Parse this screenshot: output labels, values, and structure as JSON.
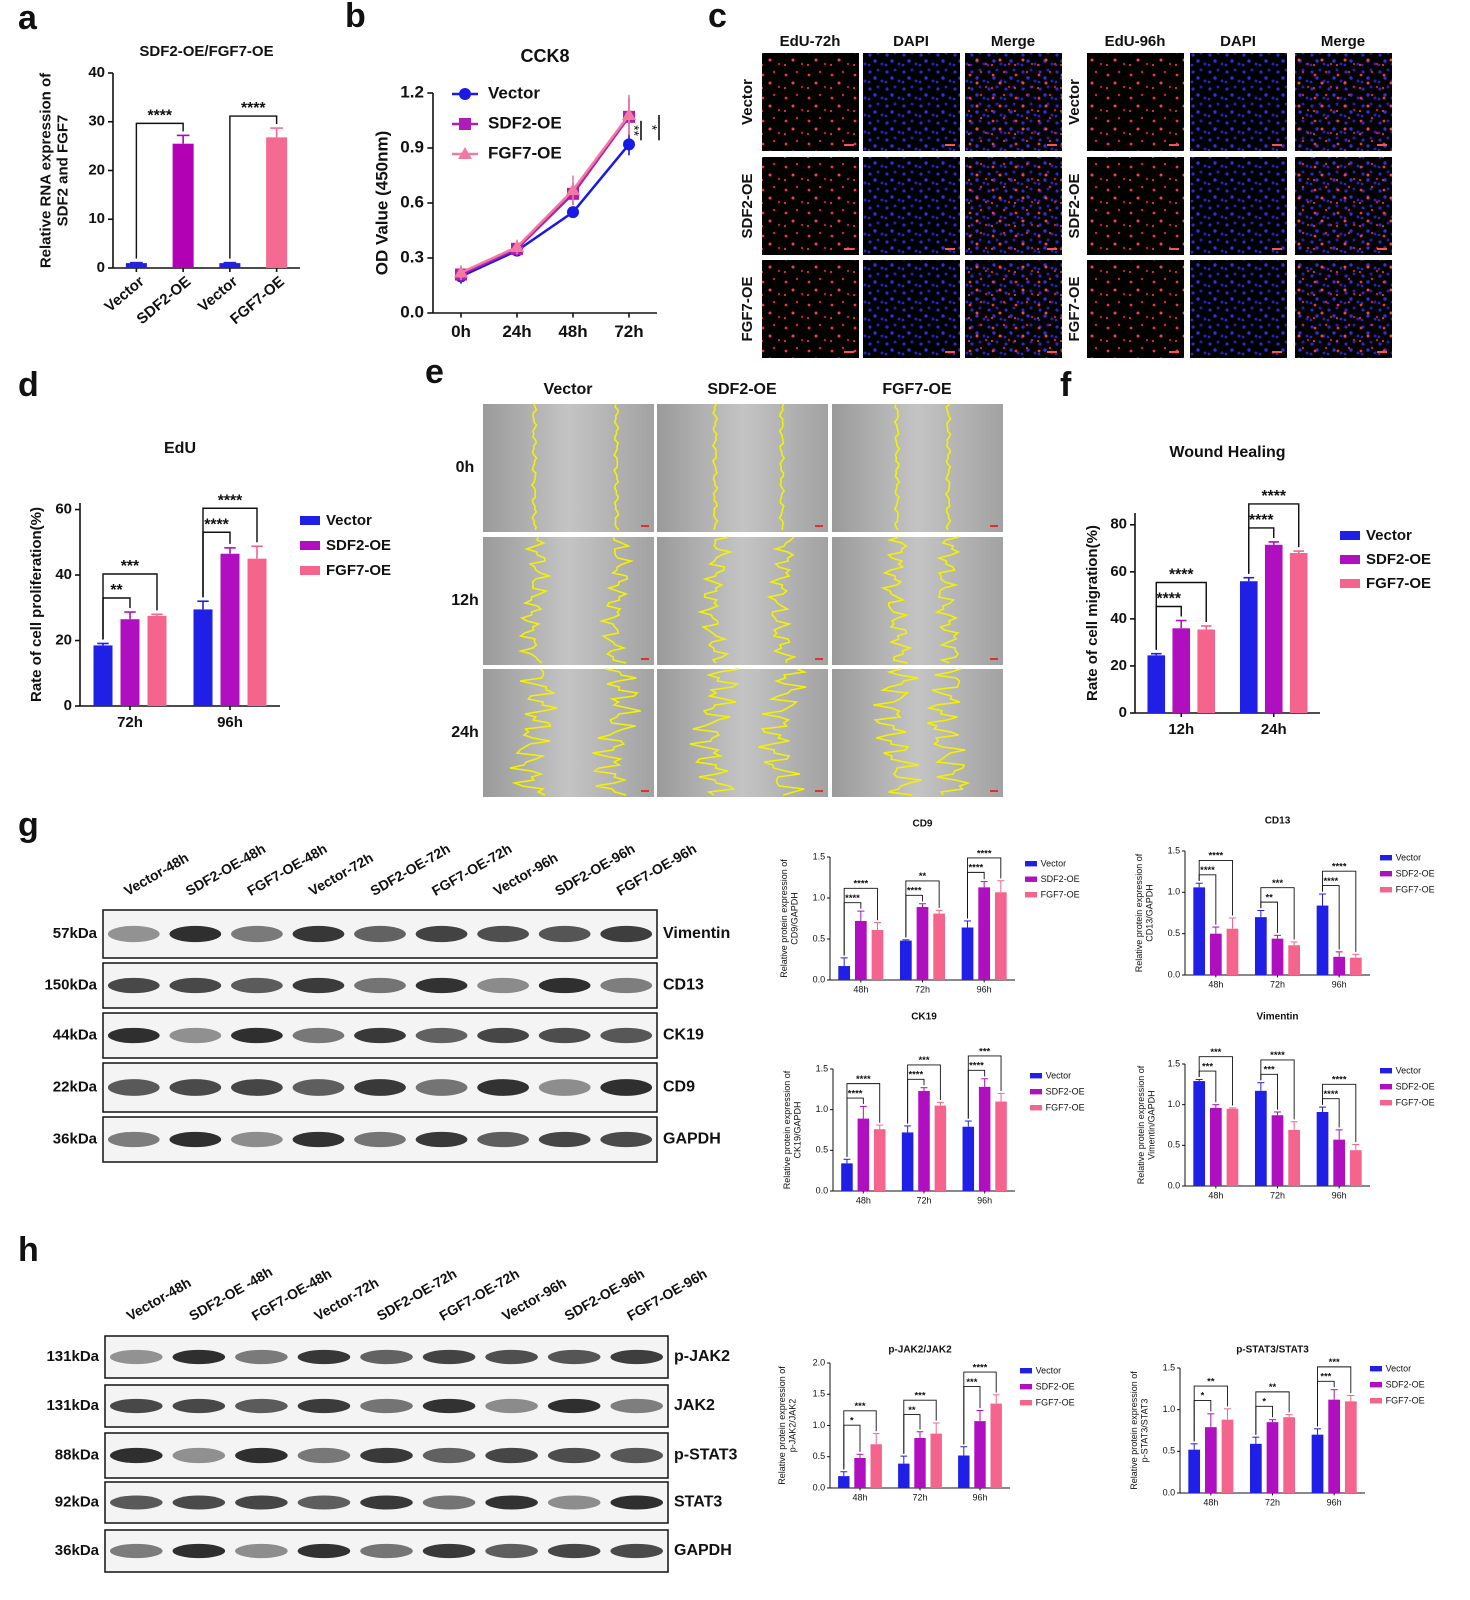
{
  "panels": [
    "a",
    "b",
    "c",
    "d",
    "e",
    "f",
    "g",
    "h"
  ],
  "chart_data": [
    {
      "type": "bar",
      "title": "SDF2-OE/FGF7-OE",
      "ylabel": [
        "Relative RNA expression of",
        "SDF2 and FGF7"
      ],
      "categories": [
        "Vector",
        "SDF2-OE",
        "Vector",
        "FGF7-OE"
      ],
      "values": [
        1,
        25.5,
        1,
        26.8
      ],
      "errors": [
        0.1,
        1.7,
        0.1,
        1.9
      ],
      "colors": [
        "#2020e0",
        "#b400b4",
        "#2020e0",
        "#f56a93"
      ],
      "ylim": [
        0,
        40
      ],
      "yticks": [
        0,
        10,
        20,
        30,
        40
      ],
      "significance": [
        "****",
        "****"
      ]
    },
    {
      "type": "line",
      "title": "CCK8",
      "ylabel": [
        "OD Value (450nm)"
      ],
      "categories": [
        "0h",
        "24h",
        "48h",
        "72h"
      ],
      "series": [
        {
          "name": "Vector",
          "color": "#1a1ae6",
          "marker": "circle",
          "values": [
            0.2,
            0.34,
            0.55,
            0.92
          ],
          "errors": [
            0.04,
            0.03,
            0.03,
            0.06
          ]
        },
        {
          "name": "SDF2-OE",
          "color": "#b01cb8",
          "marker": "square",
          "values": [
            0.21,
            0.35,
            0.65,
            1.07
          ],
          "errors": [
            0.04,
            0.04,
            0.06,
            0.1
          ]
        },
        {
          "name": "FGF7-OE",
          "color": "#f07aa0",
          "marker": "triangle",
          "values": [
            0.22,
            0.36,
            0.67,
            1.08
          ],
          "errors": [
            0.04,
            0.04,
            0.08,
            0.11
          ]
        }
      ],
      "ylim": [
        0,
        1.2
      ],
      "yticks": [
        {
          "value": 0,
          "label": "0.0"
        },
        0.3,
        0.6,
        0.9,
        1.2
      ],
      "legend": "upper left",
      "significance": [
        "**",
        "*"
      ]
    },
    {
      "type": "bar",
      "title": "EdU",
      "ylabel": [
        "Rate of cell proliferation(%)"
      ],
      "categories": [
        "72h",
        "96h"
      ],
      "series": [
        {
          "name": "Vector",
          "color": "#1f1fe6",
          "values": [
            18.5,
            29.5
          ],
          "errors": [
            0.6,
            2.5
          ]
        },
        {
          "name": "SDF2-OE",
          "color": "#b00fbf",
          "values": [
            26.5,
            46.5
          ],
          "errors": [
            2.2,
            1.8
          ]
        },
        {
          "name": "FGF7-OE",
          "color": "#f5648c",
          "values": [
            27.5,
            45
          ],
          "errors": [
            0.5,
            3.8
          ]
        }
      ],
      "ylim": [
        0,
        62
      ],
      "yticks": [
        0,
        20,
        40,
        60
      ],
      "legend": "right",
      "significance": [
        [
          "**",
          "***"
        ],
        [
          "****",
          "****"
        ]
      ]
    },
    {
      "type": "bar",
      "title": "Wound Healing",
      "ylabel": [
        "Rate of cell migration(%)"
      ],
      "categories": [
        "12h",
        "24h"
      ],
      "series": [
        {
          "name": "Vector",
          "color": "#1f1fe6",
          "values": [
            24.5,
            56
          ],
          "errors": [
            0.7,
            1.5
          ]
        },
        {
          "name": "SDF2-OE",
          "color": "#b00fbf",
          "values": [
            36,
            71.5
          ],
          "errors": [
            3.3,
            1.2
          ]
        },
        {
          "name": "FGF7-OE",
          "color": "#f5648c",
          "values": [
            35.5,
            68
          ],
          "errors": [
            1.5,
            0.8
          ]
        }
      ],
      "ylim": [
        0,
        85
      ],
      "yticks": [
        0,
        20,
        40,
        60,
        80
      ],
      "legend": "right",
      "significance": [
        [
          "****",
          "****"
        ],
        [
          "****",
          "****"
        ]
      ]
    },
    {
      "type": "bar",
      "title": "CD9",
      "ylabel": [
        "Relative protein expression of",
        "CD9/GAPDH"
      ],
      "categories": [
        "48h",
        "72h",
        "96h"
      ],
      "series": [
        {
          "name": "Vector",
          "color": "#1f1fe6",
          "values": [
            0.17,
            0.48,
            0.64
          ],
          "errors": [
            0.1,
            0.01,
            0.08
          ]
        },
        {
          "name": "SDF2-OE",
          "color": "#b00fbf",
          "values": [
            0.72,
            0.89,
            1.13
          ],
          "errors": [
            0.12,
            0.04,
            0.07
          ]
        },
        {
          "name": "FGF7-OE",
          "color": "#f5648c",
          "values": [
            0.61,
            0.81,
            1.07
          ],
          "errors": [
            0.09,
            0.04,
            0.14
          ]
        }
      ],
      "ylim": [
        0,
        1.5
      ],
      "yticks": [
        {
          "value": 0,
          "label": "0.0"
        },
        0.5,
        {
          "value": 1,
          "label": "1.0"
        },
        1.5
      ],
      "legend": "right",
      "significance": [
        [
          "****",
          "****"
        ],
        [
          "****",
          "**"
        ],
        [
          "****",
          "****"
        ]
      ]
    },
    {
      "type": "bar",
      "title": "CD13",
      "ylabel": [
        "Relative protein expression of",
        "CD13/GAPDH"
      ],
      "categories": [
        "48h",
        "72h",
        "96h"
      ],
      "series": [
        {
          "name": "Vector",
          "color": "#1f1fe6",
          "values": [
            1.06,
            0.7,
            0.84
          ],
          "errors": [
            0.05,
            0.08,
            0.14
          ]
        },
        {
          "name": "SDF2-OE",
          "color": "#b00fbf",
          "values": [
            0.5,
            0.44,
            0.22
          ],
          "errors": [
            0.08,
            0.04,
            0.06
          ]
        },
        {
          "name": "FGF7-OE",
          "color": "#f5648c",
          "values": [
            0.56,
            0.36,
            0.21
          ],
          "errors": [
            0.13,
            0.04,
            0.04
          ]
        }
      ],
      "ylim": [
        0,
        1.5
      ],
      "yticks": [
        {
          "value": 0,
          "label": "0.0"
        },
        0.5,
        {
          "value": 1,
          "label": "1.0"
        },
        1.5
      ],
      "legend": "right",
      "significance": [
        [
          "****",
          "****"
        ],
        [
          "**",
          "***"
        ],
        [
          "****",
          "****"
        ]
      ]
    },
    {
      "type": "bar",
      "title": "CK19",
      "ylabel": [
        "Relative protein expression of",
        "CK19/GAPDH"
      ],
      "categories": [
        "48h",
        "72h",
        "96h"
      ],
      "series": [
        {
          "name": "Vector",
          "color": "#1f1fe6",
          "values": [
            0.34,
            0.72,
            0.79
          ],
          "errors": [
            0.05,
            0.08,
            0.07
          ]
        },
        {
          "name": "SDF2-OE",
          "color": "#b00fbf",
          "values": [
            0.89,
            1.23,
            1.28
          ],
          "errors": [
            0.15,
            0.04,
            0.1
          ]
        },
        {
          "name": "FGF7-OE",
          "color": "#f5648c",
          "values": [
            0.76,
            1.05,
            1.1
          ],
          "errors": [
            0.05,
            0.04,
            0.1
          ]
        }
      ],
      "ylim": [
        0,
        1.5
      ],
      "yticks": [
        {
          "value": 0,
          "label": "0.0"
        },
        0.5,
        {
          "value": 1,
          "label": "1.0"
        },
        1.5
      ],
      "legend": "right",
      "significance": [
        [
          "****",
          "****"
        ],
        [
          "****",
          "***"
        ],
        [
          "****",
          "***"
        ]
      ]
    },
    {
      "type": "bar",
      "title": "Vimentin",
      "ylabel": [
        "Relative protein expression of",
        "Vimentin/GAPDH"
      ],
      "categories": [
        "48h",
        "72h",
        "96h"
      ],
      "series": [
        {
          "name": "Vector",
          "color": "#1f1fe6",
          "values": [
            1.29,
            1.17,
            0.91
          ],
          "errors": [
            0.02,
            0.1,
            0.06
          ]
        },
        {
          "name": "SDF2-OE",
          "color": "#b00fbf",
          "values": [
            0.96,
            0.87,
            0.57
          ],
          "errors": [
            0.04,
            0.04,
            0.12
          ]
        },
        {
          "name": "FGF7-OE",
          "color": "#f5648c",
          "values": [
            0.95,
            0.69,
            0.44
          ],
          "errors": [
            0.01,
            0.1,
            0.07
          ]
        }
      ],
      "ylim": [
        0,
        1.5
      ],
      "yticks": [
        {
          "value": 0,
          "label": "0.0"
        },
        0.5,
        {
          "value": 1,
          "label": "1.0"
        },
        1.5
      ],
      "legend": "right",
      "significance": [
        [
          "***",
          "***"
        ],
        [
          "***",
          "****"
        ],
        [
          "****",
          "****"
        ]
      ]
    },
    {
      "type": "bar",
      "title": "p-JAK2/JAK2",
      "ylabel": [
        "Relative protein expression of",
        "p-JAK2/JAK2"
      ],
      "categories": [
        "48h",
        "72h",
        "96h"
      ],
      "series": [
        {
          "name": "Vector",
          "color": "#1f1fe6",
          "values": [
            0.19,
            0.39,
            0.52
          ],
          "errors": [
            0.07,
            0.12,
            0.14
          ]
        },
        {
          "name": "SDF2-OE",
          "color": "#b00fbf",
          "values": [
            0.48,
            0.8,
            1.07
          ],
          "errors": [
            0.06,
            0.1,
            0.17
          ]
        },
        {
          "name": "FGF7-OE",
          "color": "#f5648c",
          "values": [
            0.7,
            0.87,
            1.35
          ],
          "errors": [
            0.17,
            0.17,
            0.14
          ]
        }
      ],
      "ylim": [
        0,
        2
      ],
      "yticks": [
        {
          "value": 0,
          "label": "0.0"
        },
        0.5,
        {
          "value": 1,
          "label": "1.0"
        },
        1.5,
        {
          "value": 2,
          "label": "2.0"
        }
      ],
      "legend": "right",
      "significance": [
        [
          "*",
          "***"
        ],
        [
          "**",
          "***"
        ],
        [
          "***",
          "****"
        ]
      ]
    },
    {
      "type": "bar",
      "title": "p-STAT3/STAT3",
      "ylabel": [
        "Relative protein expression of",
        "p-STAT3/STAT3"
      ],
      "categories": [
        "48h",
        "72h",
        "96h"
      ],
      "series": [
        {
          "name": "Vector",
          "color": "#1f1fe6",
          "values": [
            0.52,
            0.59,
            0.7
          ],
          "errors": [
            0.07,
            0.08,
            0.07
          ]
        },
        {
          "name": "SDF2-OE",
          "color": "#b00fbf",
          "values": [
            0.79,
            0.85,
            1.12
          ],
          "errors": [
            0.16,
            0.03,
            0.12
          ]
        },
        {
          "name": "FGF7-OE",
          "color": "#f5648c",
          "values": [
            0.88,
            0.91,
            1.1
          ],
          "errors": [
            0.13,
            0.03,
            0.07
          ]
        }
      ],
      "ylim": [
        0,
        1.5
      ],
      "yticks": [
        {
          "value": 0,
          "label": "0.0"
        },
        0.5,
        {
          "value": 1,
          "label": "1.0"
        },
        1.5
      ],
      "legend": "right",
      "significance": [
        [
          "*",
          "**"
        ],
        [
          "*",
          "**"
        ],
        [
          "***",
          "***"
        ]
      ]
    }
  ],
  "edu_panel": {
    "columns": [
      "EdU-72h",
      "DAPI",
      "Merge",
      "EdU-96h",
      "DAPI",
      "Merge"
    ],
    "rows": [
      "Vector",
      "SDF2-OE",
      "FGF7-OE"
    ]
  },
  "wound_panel": {
    "columns": [
      "Vector",
      "SDF2-OE",
      "FGF7-OE"
    ],
    "rows": [
      "0h",
      "12h",
      "24h"
    ]
  },
  "blot_g": {
    "lanes": [
      "Vector-48h",
      "SDF2-OE-48h",
      "FGF7-OE-48h",
      "Vector-72h",
      "SDF2-OE-72h",
      "FGF7-OE-72h",
      "Vector-96h",
      "SDF2-OE-96h",
      "FGF7-OE-96h"
    ],
    "rows": [
      {
        "size": "57kDa",
        "protein": "Vimentin"
      },
      {
        "size": "150kDa",
        "protein": "CD13"
      },
      {
        "size": "44kDa",
        "protein": "CK19"
      },
      {
        "size": "22kDa",
        "protein": "CD9"
      },
      {
        "size": "36kDa",
        "protein": "GAPDH"
      }
    ]
  },
  "blot_h": {
    "lanes": [
      "Vector-48h",
      "SDF2-OE -48h",
      "FGF7-OE-48h",
      "Vector-72h",
      "SDF2-OE-72h",
      "FGF7-OE-72h",
      "Vector-96h",
      "SDF2-OE-96h",
      "FGF7-OE-96h"
    ],
    "rows": [
      {
        "size": "131kDa",
        "protein": "p-JAK2"
      },
      {
        "size": "131kDa",
        "protein": "JAK2"
      },
      {
        "size": "88kDa",
        "protein": "p-STAT3"
      },
      {
        "size": "92kDa",
        "protein": "STAT3"
      },
      {
        "size": "36kDa",
        "protein": "GAPDH"
      }
    ]
  }
}
